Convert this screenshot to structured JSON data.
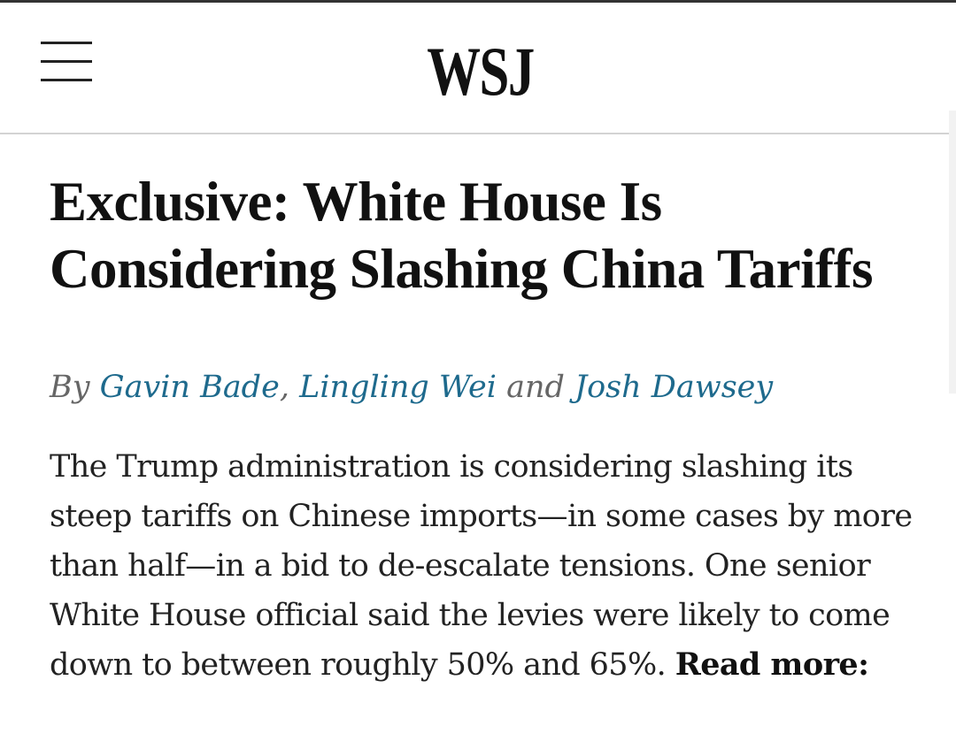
{
  "header": {
    "logo": "WSJ",
    "menu_icon": "hamburger-menu-icon"
  },
  "article": {
    "headline": "Exclusive: White House Is Considering Slashing China Tariffs",
    "byline": {
      "prefix": "By",
      "authors": [
        "Gavin Bade",
        "Lingling Wei",
        "Josh Dawsey"
      ],
      "separator": ",",
      "conjunction": "and"
    },
    "body": "The Trump administration is considering slashing its steep tariffs on Chinese imports—in some cases by more than half—in a bid to de-escalate tensions. One senior White House official said the levies were likely to come down to between roughly 50% and 65%.",
    "read_more": "Read more:"
  },
  "colors": {
    "author_link": "#1e6a8d",
    "byline_muted": "#666666",
    "text": "#111111",
    "divider": "#d3d3d3"
  }
}
